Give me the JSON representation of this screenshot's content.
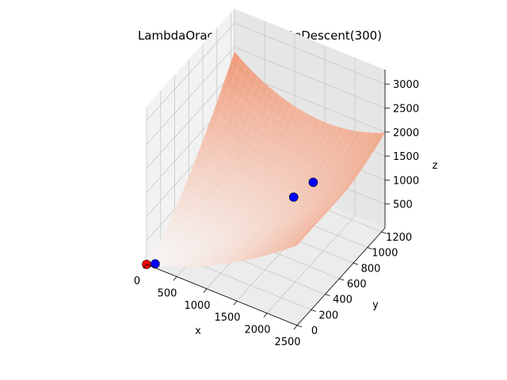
{
  "chart_data": {
    "type": "surface3d",
    "title": "LambdaOracul | CoordinateDescent(300)",
    "xlabel": "x",
    "ylabel": "y",
    "zlabel": "z",
    "x_ticks": [
      "0",
      "500",
      "1000",
      "1500",
      "2000",
      "2500"
    ],
    "y_ticks": [
      "0",
      "200",
      "400",
      "600",
      "800",
      "1000",
      "1200"
    ],
    "z_ticks": [
      "500",
      "1000",
      "1500",
      "2000",
      "2500",
      "3000"
    ],
    "xlim": [
      0,
      2500
    ],
    "ylim": [
      0,
      1250
    ],
    "zlim": [
      0,
      3300
    ],
    "grid": true,
    "surface_colormap": "reds-to-white",
    "surface_color_low": "#f7f7f7",
    "surface_color_high": "#ef8a62",
    "points": [
      {
        "x": 0,
        "y": 0,
        "z": 0,
        "color": "#ff0000",
        "role": "start"
      },
      {
        "x": 120,
        "y": 20,
        "z": 40,
        "color": "#0000ff"
      },
      {
        "x": 1450,
        "y": 850,
        "z": 760,
        "color": "#0000ff"
      },
      {
        "x": 1600,
        "y": 1000,
        "z": 900,
        "color": "#0000ff"
      }
    ]
  }
}
